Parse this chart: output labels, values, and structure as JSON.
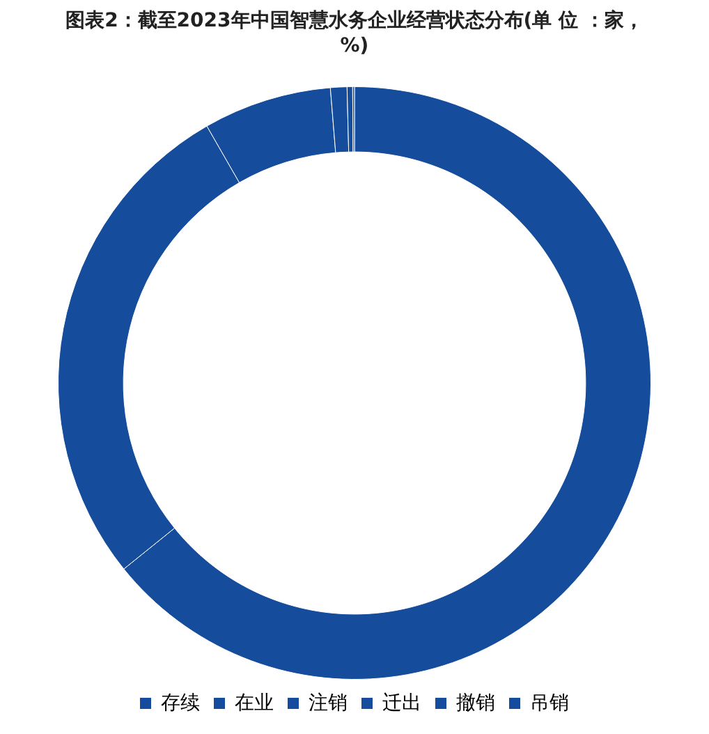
{
  "chart_data": {
    "type": "donut",
    "title": "图表2：截至2023年中国智慧水务企业经营状态分布(单 位 ：家，%)",
    "categories": [
      "存续",
      "在业",
      "注销",
      "迁出",
      "撤销",
      "吊销"
    ],
    "values": [
      64.2,
      27.5,
      7.0,
      0.9,
      0.3,
      0.1
    ],
    "colors": [
      "#154d9c",
      "#154d9c",
      "#154d9c",
      "#154d9c",
      "#154d9c",
      "#154d9c"
    ],
    "legend": "bottom"
  }
}
